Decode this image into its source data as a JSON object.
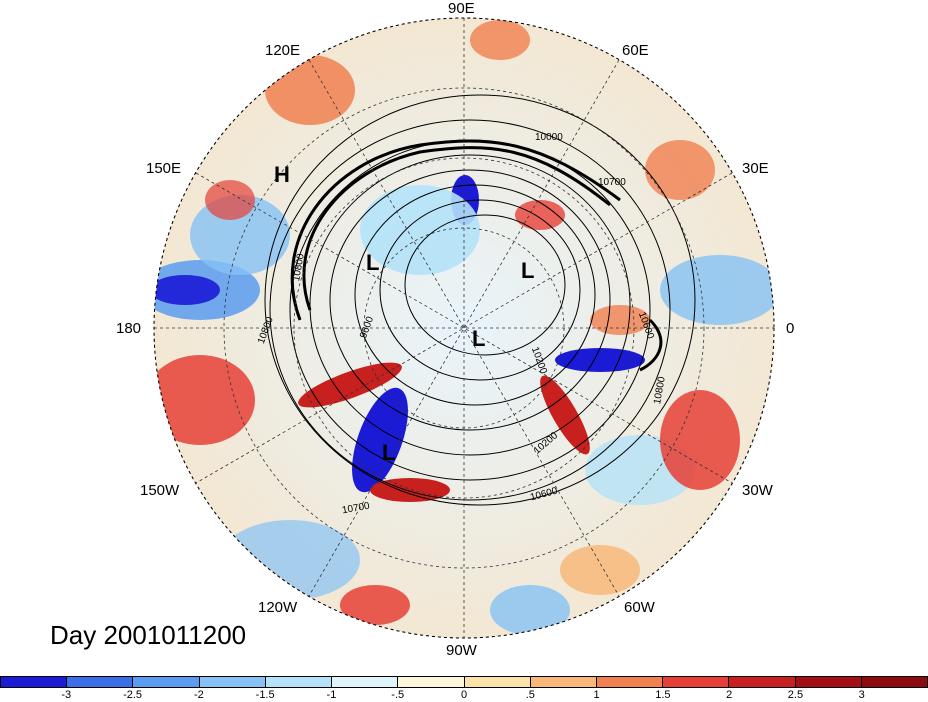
{
  "title": "Day 2001011200",
  "longitude_labels": {
    "n90e": "90E",
    "n120e": "120E",
    "n60e": "60E",
    "n150e": "150E",
    "n30e": "30E",
    "n180": "180",
    "n0": "0",
    "n150w": "150W",
    "n30w": "30W",
    "n120w": "120W",
    "n60w": "60W",
    "n90w": "90W"
  },
  "pressure_systems": {
    "h1": "H",
    "l1": "L",
    "l2": "L",
    "l3": "L",
    "l4": "L"
  },
  "contour_labels": {
    "c10800a": "10800",
    "c9600": "9600",
    "c10800b": "10800",
    "c10200a": "10200",
    "c10200b": "10200",
    "c10600": "10600",
    "c10700": "10700",
    "c10800c": "10800",
    "c10600b": "10600",
    "c10000": "10000",
    "c10700b": "10700"
  },
  "colorbar": {
    "ticks": [
      "-3",
      "-2.5",
      "-2",
      "-1.5",
      "-1",
      "-.5",
      "0",
      ".5",
      "1",
      "1.5",
      "2",
      "2.5",
      "3"
    ],
    "colors": [
      "#1b1bd6",
      "#3a6fe8",
      "#5b9cf0",
      "#86c2f5",
      "#b4e2f8",
      "#dff4fb",
      "#fdf6dd",
      "#fbe2a8",
      "#f8b87a",
      "#f08050",
      "#e64036",
      "#c8201e",
      "#a30f14"
    ]
  }
}
